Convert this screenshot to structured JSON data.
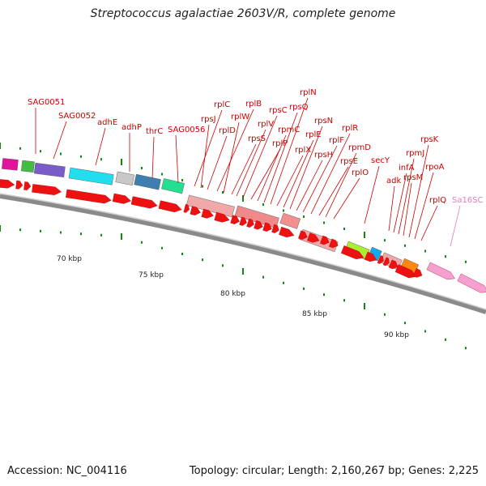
{
  "title": "Streptococcus agalactiae 2603V/R, complete genome",
  "accession": "Accession: NC_004116",
  "summary": "Topology: circular; Length: 2,160,267 bp; Genes: 2,225",
  "colors": {
    "gene_label": "#cc0000",
    "rna_label": "#e87ab8",
    "cds_arrow": "#ee1111",
    "rna_arrow": "#f6a0d2",
    "backbone": "#8a8a8a",
    "tick": "#118811"
  },
  "scale_labels": [
    "70 kbp",
    "75 kbp",
    "80 kbp",
    "85 kbp",
    "90 kbp"
  ],
  "gene_labels": [
    {
      "name": "SAG0051",
      "pink": false
    },
    {
      "name": "SAG0052",
      "pink": false
    },
    {
      "name": "adhE",
      "pink": false
    },
    {
      "name": "adhP",
      "pink": false
    },
    {
      "name": "thrC",
      "pink": false
    },
    {
      "name": "SAG0056",
      "pink": false
    },
    {
      "name": "rplC",
      "pink": false
    },
    {
      "name": "rpsJ",
      "pink": false
    },
    {
      "name": "rplD",
      "pink": false
    },
    {
      "name": "rplB",
      "pink": false
    },
    {
      "name": "rplW",
      "pink": false
    },
    {
      "name": "rpsS",
      "pink": false
    },
    {
      "name": "rplV",
      "pink": false
    },
    {
      "name": "rpsC",
      "pink": false
    },
    {
      "name": "rplP",
      "pink": false
    },
    {
      "name": "rpmC",
      "pink": false
    },
    {
      "name": "rpsQ",
      "pink": false
    },
    {
      "name": "rplN",
      "pink": false
    },
    {
      "name": "rplX",
      "pink": false
    },
    {
      "name": "rplE",
      "pink": false
    },
    {
      "name": "rpsN",
      "pink": false
    },
    {
      "name": "rpsH",
      "pink": false
    },
    {
      "name": "rplF",
      "pink": false
    },
    {
      "name": "rplR",
      "pink": false
    },
    {
      "name": "rpsE",
      "pink": false
    },
    {
      "name": "rpmD",
      "pink": false
    },
    {
      "name": "rplO",
      "pink": false
    },
    {
      "name": "secY",
      "pink": false
    },
    {
      "name": "adk",
      "pink": false
    },
    {
      "name": "infA",
      "pink": false
    },
    {
      "name": "rpmJ",
      "pink": false
    },
    {
      "name": "rpsM",
      "pink": false
    },
    {
      "name": "rpsK",
      "pink": false
    },
    {
      "name": "rpoA",
      "pink": false
    },
    {
      "name": "rplQ",
      "pink": false
    },
    {
      "name": "Sa16SC",
      "pink": true
    }
  ],
  "cog_blocks": [
    {
      "color": "#e0149a"
    },
    {
      "color": "#44bb44"
    },
    {
      "color": "#7a5cc8"
    },
    {
      "color": "#22ddee"
    },
    {
      "color": "#c8c8c8"
    },
    {
      "color": "#3f7fb0"
    },
    {
      "color": "#22e090"
    },
    {
      "color": "#f0a8a8"
    },
    {
      "color": "#f08a8a"
    },
    {
      "color": "#f29090"
    },
    {
      "color": "#f0a8a8"
    },
    {
      "color": "#aaee33"
    },
    {
      "color": "#11aaee"
    },
    {
      "color": "#f0a8a8"
    },
    {
      "color": "#ff8811"
    }
  ]
}
